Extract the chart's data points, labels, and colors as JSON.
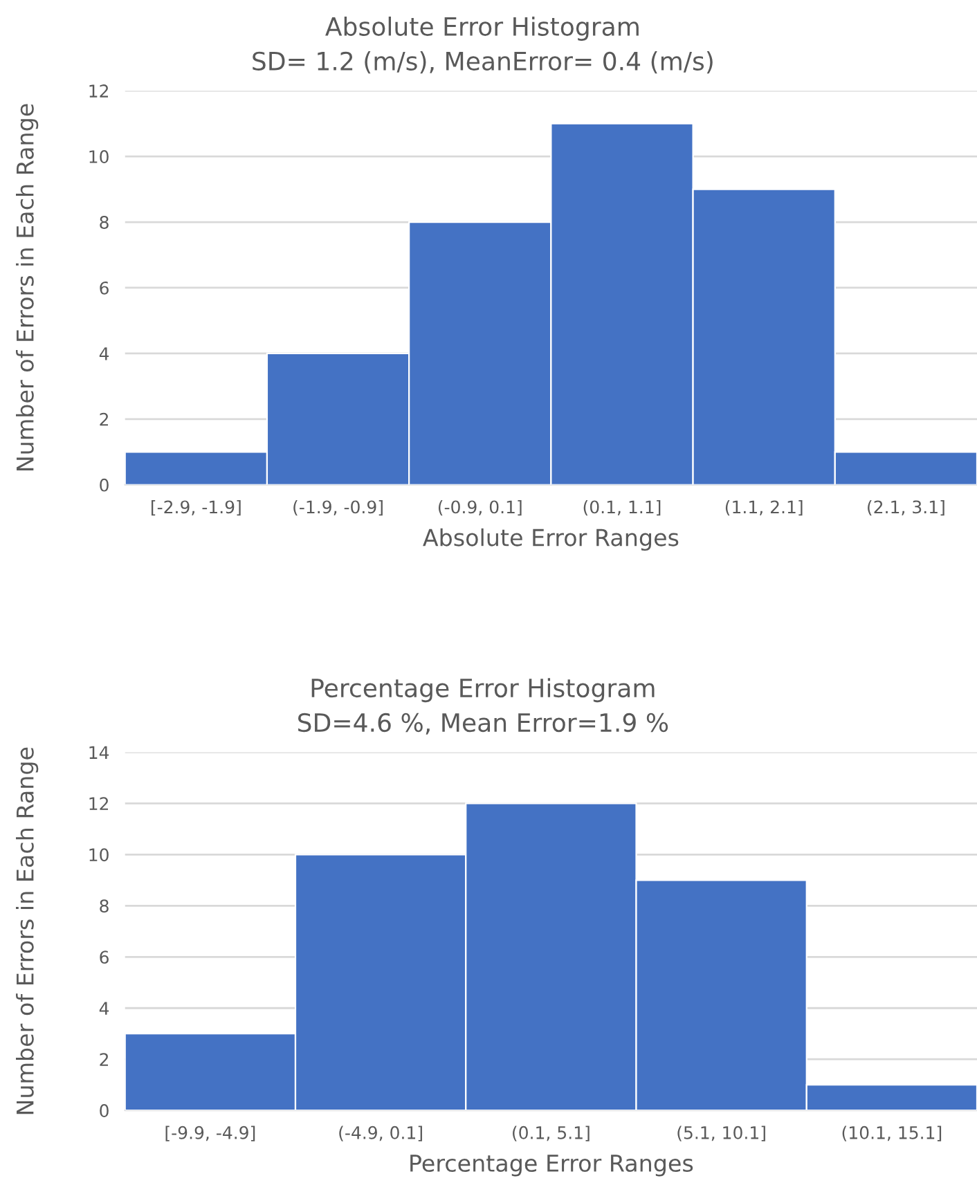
{
  "chart_data": [
    {
      "type": "bar",
      "title": "Absolute Error Histogram",
      "subtitle": "SD= 1.2 (m/s), MeanError= 0.4 (m/s)",
      "xlabel": "Absolute Error Ranges",
      "ylabel": "Number of Errors in Each Range",
      "categories": [
        "[-2.9, -1.9]",
        "(-1.9, -0.9]",
        "(-0.9, 0.1]",
        "(0.1, 1.1]",
        "(1.1, 2.1]",
        "(2.1, 3.1]"
      ],
      "values": [
        1,
        4,
        8,
        11,
        9,
        1
      ],
      "color": "#4472c4",
      "ylim": [
        0,
        12
      ],
      "yticks": [
        0,
        2,
        4,
        6,
        8,
        10,
        12
      ],
      "grid": "y"
    },
    {
      "type": "bar",
      "title": "Percentage Error Histogram",
      "subtitle": "SD=4.6 %, Mean Error=1.9 %",
      "xlabel": "Percentage Error Ranges",
      "ylabel": "Number of Errors in Each Range",
      "categories": [
        "[-9.9, -4.9]",
        "(-4.9, 0.1]",
        "(0.1, 5.1]",
        "(5.1, 10.1]",
        "(10.1, 15.1]"
      ],
      "values": [
        3,
        10,
        12,
        9,
        1
      ],
      "color": "#4472c4",
      "ylim": [
        0,
        14
      ],
      "yticks": [
        0,
        2,
        4,
        6,
        8,
        10,
        12,
        14
      ],
      "grid": "y"
    }
  ]
}
